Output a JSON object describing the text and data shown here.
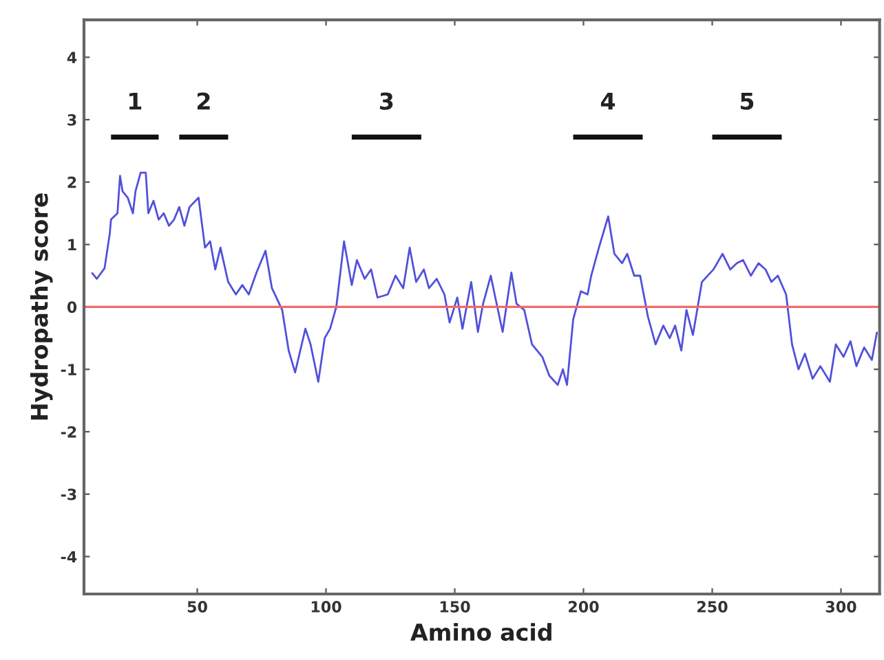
{
  "chart_data": {
    "type": "line",
    "xlabel": "Amino acid",
    "ylabel": "Hydropathy score",
    "xlim": [
      6,
      315
    ],
    "ylim": [
      -4.6,
      4.6
    ],
    "xticks": [
      50,
      100,
      150,
      200,
      250,
      300
    ],
    "yticks": [
      -4,
      -3,
      -2,
      -1,
      0,
      1,
      2,
      3,
      4
    ],
    "grid": false,
    "marker": "none",
    "line_style": "solid",
    "ref_lines": [
      {
        "axis": "y",
        "value": 0,
        "color": "#f06a6a"
      }
    ],
    "series": [
      {
        "color": "#5050dc",
        "x": [
          9,
          11,
          14,
          16,
          16.5,
          19,
          20,
          21,
          23,
          25,
          26,
          28,
          30,
          31,
          33,
          35,
          37,
          39,
          41,
          43,
          45,
          47,
          50.5,
          53,
          55,
          57,
          59,
          62,
          65,
          67.5,
          70,
          73,
          76.5,
          79,
          83,
          85.5,
          88,
          92,
          94,
          97,
          99.5,
          101.6,
          104,
          107,
          110,
          112,
          115,
          117.5,
          120,
          124,
          127,
          130,
          132.5,
          135,
          138,
          140,
          143,
          146,
          148,
          151,
          153,
          156.4,
          159,
          161,
          164,
          165.5,
          168.6,
          172,
          174,
          177,
          180,
          184,
          186.7,
          190,
          192,
          193.6,
          196,
          199,
          201.6,
          203,
          206,
          209.6,
          212,
          215,
          217,
          219.7,
          222,
          225,
          228,
          231,
          233.5,
          235.6,
          238,
          240,
          242.5,
          246,
          250.5,
          254,
          257,
          259.6,
          262,
          265,
          268,
          270.7,
          273,
          275.5,
          278.7,
          281,
          283.5,
          286,
          289,
          292,
          295.7,
          298,
          301,
          303.7,
          306,
          309,
          312,
          314
        ],
        "values": [
          0.55,
          0.45,
          0.62,
          1.17,
          1.4,
          1.5,
          2.1,
          1.85,
          1.75,
          1.5,
          1.85,
          2.15,
          2.15,
          1.5,
          1.7,
          1.4,
          1.5,
          1.3,
          1.4,
          1.6,
          1.3,
          1.6,
          1.75,
          0.95,
          1.05,
          0.6,
          0.95,
          0.4,
          0.2,
          0.35,
          0.2,
          0.55,
          0.9,
          0.3,
          -0.05,
          -0.7,
          -1.05,
          -0.35,
          -0.6,
          -1.2,
          -0.5,
          -0.35,
          0,
          1.05,
          0.35,
          0.75,
          0.45,
          0.6,
          0.15,
          0.2,
          0.5,
          0.3,
          0.95,
          0.4,
          0.6,
          0.3,
          0.45,
          0.2,
          -0.25,
          0.15,
          -0.35,
          0.4,
          -0.4,
          0.05,
          0.5,
          0.2,
          -0.4,
          0.55,
          0.05,
          -0.05,
          -0.6,
          -0.8,
          -1.1,
          -1.25,
          -1.0,
          -1.25,
          -0.2,
          0.25,
          0.2,
          0.5,
          0.95,
          1.45,
          0.85,
          0.7,
          0.85,
          0.5,
          0.5,
          -0.15,
          -0.6,
          -0.3,
          -0.5,
          -0.3,
          -0.7,
          -0.05,
          -0.45,
          0.4,
          0.6,
          0.85,
          0.6,
          0.7,
          0.75,
          0.5,
          0.7,
          0.6,
          0.4,
          0.5,
          0.2,
          -0.6,
          -1.0,
          -0.75,
          -1.15,
          -0.95,
          -1.2,
          -0.6,
          -0.8,
          -0.55,
          -0.95,
          -0.65,
          -0.85,
          -0.4
        ]
      },
      {
        "type": "line",
        "name": "1",
        "color": "#111111",
        "x": [
          16.5,
          35
        ],
        "values": [
          2.72,
          2.72
        ]
      },
      {
        "type": "line",
        "name": "2",
        "color": "#111111",
        "x": [
          43,
          62
        ],
        "values": [
          2.72,
          2.72
        ]
      },
      {
        "type": "line",
        "name": "3",
        "color": "#111111",
        "x": [
          110,
          137
        ],
        "values": [
          2.72,
          2.72
        ]
      },
      {
        "type": "line",
        "name": "4",
        "color": "#111111",
        "x": [
          196,
          223
        ],
        "values": [
          2.72,
          2.72
        ]
      },
      {
        "type": "line",
        "name": "5",
        "color": "#111111",
        "x": [
          250,
          277
        ],
        "values": [
          2.72,
          2.72
        ]
      }
    ]
  }
}
